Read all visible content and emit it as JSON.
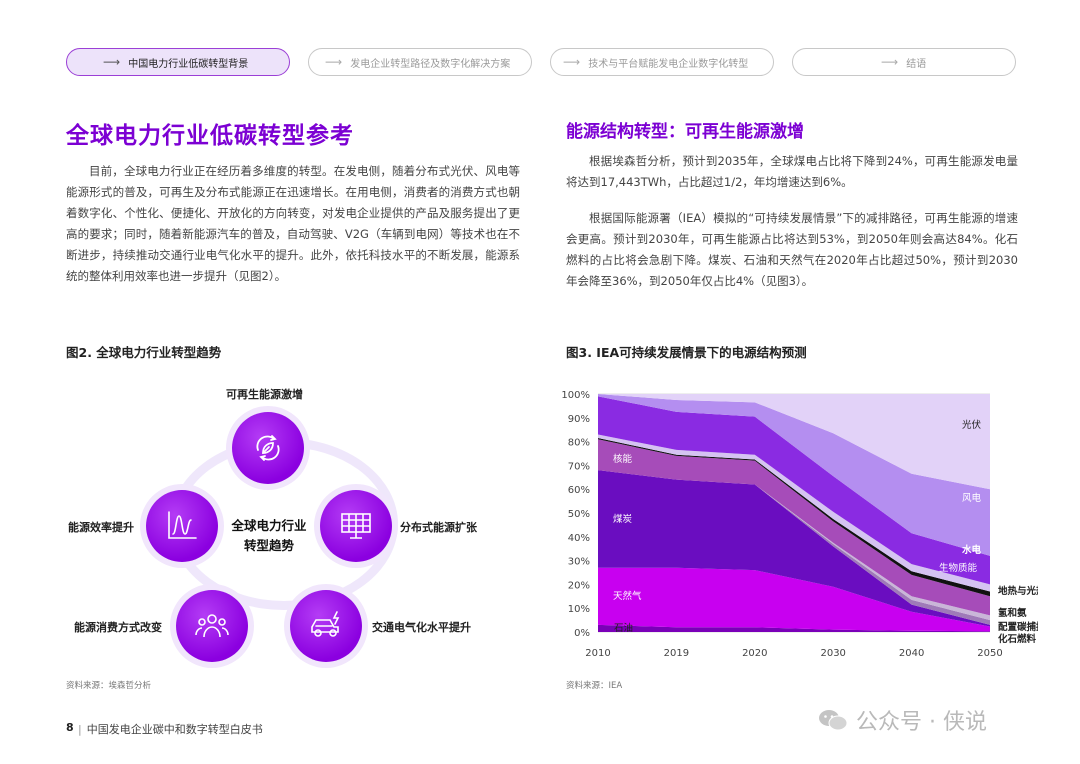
{
  "nav": {
    "tabs": [
      {
        "label": "中国电力行业低碳转型背景",
        "active": true
      },
      {
        "label": "发电企业转型路径及数字化解决方案",
        "active": false
      },
      {
        "label": "技术与平台赋能发电企业数字化转型",
        "active": false
      },
      {
        "label": "结语",
        "active": false
      }
    ],
    "arrow": "⟶"
  },
  "left": {
    "heading": "全球电力行业低碳转型参考",
    "paragraph": "目前，全球电力行业正在经历着多维度的转型。在发电侧，随着分布式光伏、风电等能源形式的普及，可再生及分布式能源正在迅速增长。在用电侧，消费者的消费方式也朝着数字化、个性化、便捷化、开放化的方向转变，对发电企业提供的产品及服务提出了更高的要求；同时，随着新能源汽车的普及，自动驾驶、V2G（车辆到电网）等技术也在不断进步，持续推动交通行业电气化水平的提升。此外，依托科技水平的不断发展，能源系统的整体利用效率也进一步提升（见图2）。",
    "figure_title": "图2. 全球电力行业转型趋势",
    "source": "资料来源：埃森哲分析"
  },
  "diagram": {
    "center": [
      "全球电力行业",
      "转型趋势"
    ],
    "nodes": [
      {
        "label": "可再生能源激增",
        "icon": "renewable-leaf-icon"
      },
      {
        "label": "分布式能源扩张",
        "icon": "solar-panel-icon"
      },
      {
        "label": "交通电气化水平提升",
        "icon": "electric-car-icon"
      },
      {
        "label": "能源消费方式改变",
        "icon": "people-group-icon"
      },
      {
        "label": "能源效率提升",
        "icon": "efficiency-chart-icon"
      }
    ]
  },
  "right": {
    "heading": "能源结构转型：可再生能源激增",
    "paragraph1": "根据埃森哲分析，预计到2035年，全球煤电占比将下降到24%，可再生能源发电量将达到17,443TWh，占比超过1/2，年均增速达到6%。",
    "paragraph2": "根据国际能源署（IEA）模拟的“可持续发展情景”下的减排路径，可再生能源的增速会更高。预计到2030年，可再生能源占比将达到53%，到2050年则会高达84%。化石燃料的占比将会急剧下降。煤炭、石油和天然气在2020年占比超过50%，预计到2030年会降至36%，到2050年仅占比4%（见图3）。",
    "figure_title": "图3. IEA可持续发展情景下的电源结构预测",
    "source": "资料来源：IEA"
  },
  "chart_data": {
    "type": "area",
    "stacked": true,
    "x": [
      "2010",
      "2019",
      "2020",
      "2030",
      "2040",
      "2050"
    ],
    "ylim": [
      0,
      100
    ],
    "yticks": [
      "0%",
      "10%",
      "20%",
      "30%",
      "40%",
      "50%",
      "60%",
      "70%",
      "80%",
      "90%",
      "100%"
    ],
    "series": [
      {
        "name": "石油",
        "values": [
          3,
          2,
          2,
          1,
          0.5,
          0.3
        ],
        "color": "#7a00b8"
      },
      {
        "name": "天然气",
        "values": [
          24,
          25,
          24,
          18,
          8,
          2
        ],
        "color": "#c800f0"
      },
      {
        "name": "煤炭",
        "values": [
          41,
          37,
          36,
          17,
          3,
          0.7
        ],
        "color": "#6a0dc0"
      },
      {
        "name": "配置碳捕捉的化石燃料",
        "values": [
          0,
          0,
          0,
          1,
          2,
          2
        ],
        "color": "#9f7ab8"
      },
      {
        "name": "氢和氨",
        "values": [
          0,
          0,
          0,
          0.5,
          1.5,
          2
        ],
        "color": "#c9b6d8"
      },
      {
        "name": "核能",
        "values": [
          13,
          10,
          10,
          9,
          9,
          8
        ],
        "color": "#a64cb9"
      },
      {
        "name": "地热与光热",
        "values": [
          0.5,
          0.5,
          0.5,
          1,
          1.5,
          2
        ],
        "color": "#111111"
      },
      {
        "name": "生物质能",
        "values": [
          1.5,
          2,
          2,
          3,
          3,
          3
        ],
        "color": "#d5c3f2"
      },
      {
        "name": "水电",
        "values": [
          16,
          16,
          16,
          15,
          13,
          12
        ],
        "color": "#8a2be2"
      },
      {
        "name": "风电",
        "values": [
          1,
          5,
          6,
          18,
          25,
          28
        ],
        "color": "#b48ef0"
      },
      {
        "name": "光伏",
        "values": [
          0,
          2.5,
          3.5,
          16.5,
          33.5,
          40
        ],
        "color": "#e2d2f8"
      }
    ],
    "labels": {
      "oil": "石油",
      "gas": "天然气",
      "coal": "煤炭",
      "nuclear": "核能",
      "hydro": "水电",
      "wind": "风电",
      "solar": "光伏",
      "bio": "生物质能",
      "geo": "地热与光热",
      "h2": "氢和氨",
      "ccs1": "配置碳捕捉的",
      "ccs2": "化石燃料"
    }
  },
  "footer": {
    "page": "8",
    "title": "中国发电企业碳中和数字转型白皮书"
  },
  "watermark": {
    "text": "公众号 · 侠说"
  }
}
